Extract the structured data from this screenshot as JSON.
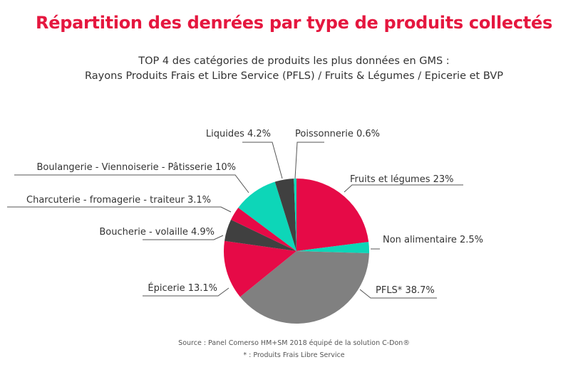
{
  "title": "Répartition des denrées par type de produits collectés",
  "subtitle_line1": "TOP 4 des catégories de produits les plus données en GMS :",
  "subtitle_line2": "Rayons Produits Frais et Libre Service (PFLS) / Fruits & Légumes / Epicerie et BVP",
  "source": "Source : Panel Comerso HM+SM 2018 équipé de la solution C-Don®",
  "footnote": "* : Produits Frais Libre Service",
  "colors": {
    "title": "#e5173f",
    "red": "#e60a47",
    "teal": "#0dd6b8",
    "grey": "#808080",
    "dark": "#404040"
  },
  "chart_data": {
    "type": "pie",
    "start": "12 o'clock, clockwise",
    "slices": [
      {
        "label": "Fruits et légumes 23%",
        "value": 23,
        "color": "#e60a47"
      },
      {
        "label": "Non alimentaire 2.5%",
        "value": 2.5,
        "color": "#0dd6b8"
      },
      {
        "label": "PFLS* 38.7%",
        "value": 38.7,
        "color": "#808080"
      },
      {
        "label": "Épicerie 13.1%",
        "value": 13.1,
        "color": "#e60a47"
      },
      {
        "label": "Boucherie - volaille 4.9%",
        "value": 4.9,
        "color": "#404040"
      },
      {
        "label": "Charcuterie - fromagerie - traiteur 3.1%",
        "value": 3.1,
        "color": "#e60a47"
      },
      {
        "label": "Boulangerie - Viennoiserie - Pâtisserie 10%",
        "value": 10,
        "color": "#0dd6b8"
      },
      {
        "label": "Liquides 4.2%",
        "value": 4.2,
        "color": "#404040"
      },
      {
        "label": "Poissonnerie 0.6%",
        "value": 0.6,
        "color": "#0dd6b8"
      }
    ]
  }
}
